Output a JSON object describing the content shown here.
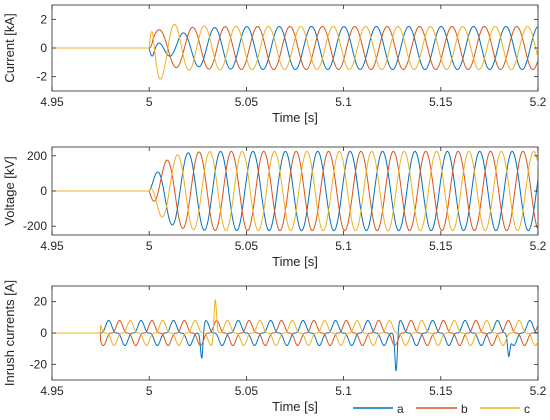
{
  "chart_data": [
    {
      "type": "line",
      "xlabel": "Time [s]",
      "ylabel": "Current [kA]",
      "xlim": [
        4.95,
        5.2
      ],
      "ylim": [
        -3,
        3
      ],
      "xticks": [
        4.95,
        5,
        5.05,
        5.1,
        5.15,
        5.2
      ],
      "xtick_labels": [
        "4.95",
        "5",
        "5.05",
        "5.1",
        "5.15",
        "5.2"
      ],
      "yticks": [
        -2,
        0,
        2
      ],
      "ytick_labels": [
        "-2",
        "0",
        "2"
      ],
      "grid": false,
      "signal": {
        "switch_time_s": 5.0,
        "frequency_hz": 60,
        "steady_amplitude": 1.5,
        "peak_first_cycle": {
          "a": -2.7,
          "b": 1.9,
          "c": 2.5
        }
      },
      "series": [
        {
          "name": "a",
          "color": "#0072BD"
        },
        {
          "name": "b",
          "color": "#D95319"
        },
        {
          "name": "c",
          "color": "#EDB120"
        }
      ]
    },
    {
      "type": "line",
      "xlabel": "Time [s]",
      "ylabel": "Voltage [kV]",
      "xlim": [
        4.95,
        5.2
      ],
      "ylim": [
        -250,
        250
      ],
      "xticks": [
        4.95,
        5,
        5.05,
        5.1,
        5.15,
        5.2
      ],
      "xtick_labels": [
        "4.95",
        "5",
        "5.05",
        "5.1",
        "5.15",
        "5.2"
      ],
      "yticks": [
        -200,
        0,
        200
      ],
      "ytick_labels": [
        "-200",
        "0",
        "200"
      ],
      "grid": false,
      "signal": {
        "switch_time_s": 5.0,
        "frequency_hz": 60,
        "steady_amplitude": 225
      },
      "series": [
        {
          "name": "a",
          "color": "#0072BD"
        },
        {
          "name": "b",
          "color": "#D95319"
        },
        {
          "name": "c",
          "color": "#EDB120"
        }
      ]
    },
    {
      "type": "line",
      "xlabel": "Time [s]",
      "ylabel": "Inrush currents [A]",
      "xlim": [
        4.95,
        5.2
      ],
      "ylim": [
        -30,
        30
      ],
      "xticks": [
        4.95,
        5,
        5.05,
        5.1,
        5.15,
        5.2
      ],
      "xtick_labels": [
        "4.95",
        "5",
        "5.05",
        "5.1",
        "5.15",
        "5.2"
      ],
      "yticks": [
        -20,
        0,
        20
      ],
      "ytick_labels": [
        "-20",
        "0",
        "20"
      ],
      "grid": false,
      "signal": {
        "start_time_s": 4.975,
        "frequency_hz": 60,
        "typical_amplitude": 8,
        "spikes": [
          {
            "series": "c",
            "x": 5.034,
            "y": 21
          },
          {
            "series": "a",
            "x": 5.127,
            "y": -24
          },
          {
            "series": "a",
            "x": 5.027,
            "y": -16
          },
          {
            "series": "a",
            "x": 5.185,
            "y": -15
          }
        ]
      },
      "series": [
        {
          "name": "a",
          "color": "#0072BD"
        },
        {
          "name": "b",
          "color": "#D95319"
        },
        {
          "name": "c",
          "color": "#EDB120"
        }
      ]
    }
  ],
  "legend": {
    "placement": "bottom-right",
    "entries": [
      {
        "label": "a",
        "color": "#0072BD"
      },
      {
        "label": "b",
        "color": "#D95319"
      },
      {
        "label": "c",
        "color": "#EDB120"
      }
    ]
  }
}
